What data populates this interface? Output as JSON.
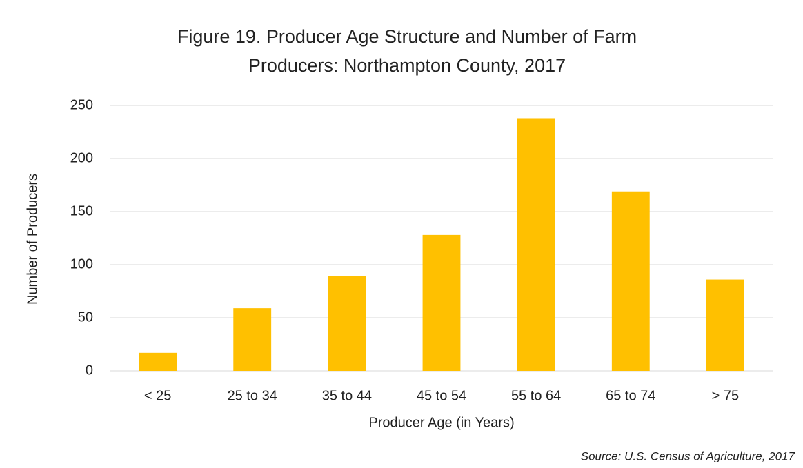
{
  "chart_data": {
    "type": "bar",
    "title": [
      "Figure 19. Producer Age Structure and Number of Farm",
      "Producers: Northampton County, 2017"
    ],
    "xlabel": "Producer Age (in Years)",
    "ylabel": "Number of Producers",
    "source": "Source: U.S. Census of Agriculture, 2017",
    "categories": [
      "< 25",
      "25 to 34",
      "35 to 44",
      "45 to 54",
      "55 to 64",
      "65 to 74",
      "> 75"
    ],
    "values": [
      17,
      59,
      89,
      128,
      238,
      169,
      86
    ],
    "color": "#ffc000",
    "ylim": [
      0,
      250
    ],
    "yticks": [
      0,
      50,
      100,
      150,
      200,
      250
    ],
    "grid": true
  }
}
